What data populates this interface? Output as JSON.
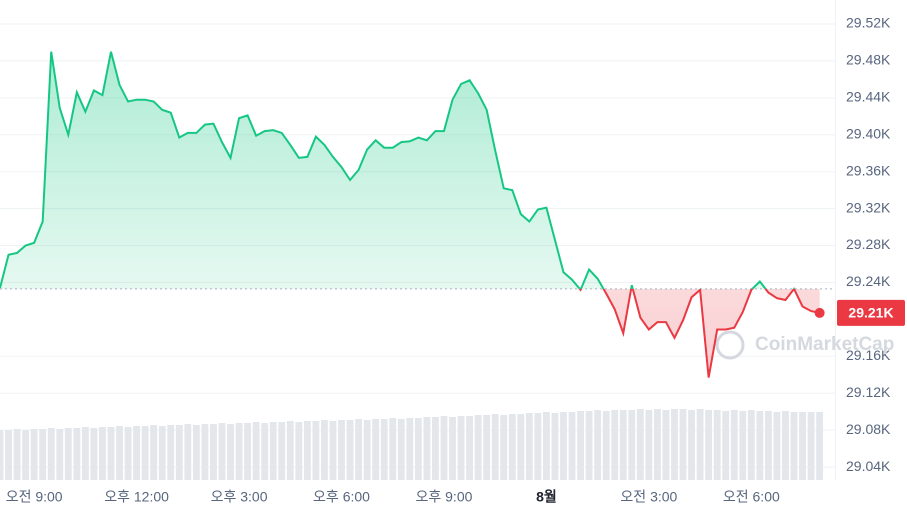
{
  "chart_data": {
    "type": "line",
    "x": [
      8,
      8.25,
      8.5,
      8.75,
      9,
      9.25,
      9.5,
      9.75,
      10,
      10.25,
      10.5,
      10.75,
      11,
      11.25,
      11.5,
      11.75,
      12,
      12.25,
      12.5,
      12.75,
      13,
      13.25,
      13.5,
      13.75,
      14,
      14.25,
      14.5,
      14.75,
      15,
      15.25,
      15.5,
      15.75,
      16,
      16.25,
      16.5,
      16.75,
      17,
      17.25,
      17.5,
      17.75,
      18,
      18.25,
      18.5,
      18.75,
      19,
      19.25,
      19.5,
      19.75,
      20,
      20.25,
      20.5,
      20.75,
      21,
      21.25,
      21.5,
      21.75,
      22,
      22.25,
      22.5,
      22.75,
      23,
      23.25,
      23.5,
      23.75,
      24,
      24.25,
      24.5,
      24.75,
      25,
      25.25,
      25.5,
      25.75,
      26,
      26.25,
      26.5,
      26.75,
      27,
      27.25,
      27.5,
      27.75,
      28,
      28.25,
      28.5,
      28.75,
      29,
      29.25,
      29.5,
      29.75,
      30,
      30.25,
      30.5,
      30.75,
      31,
      31.25,
      31.5,
      31.75,
      32
    ],
    "values": [
      29234,
      29270,
      29272,
      29280,
      29283,
      29306,
      29490,
      29429,
      29400,
      29446,
      29425,
      29448,
      29443,
      29490,
      29454,
      29436,
      29438,
      29438,
      29436,
      29427,
      29424,
      29397,
      29402,
      29402,
      29411,
      29412,
      29392,
      29375,
      29418,
      29421,
      29399,
      29404,
      29405,
      29402,
      29389,
      29375,
      29376,
      29398,
      29389,
      29376,
      29365,
      29351,
      29362,
      29384,
      29394,
      29386,
      29386,
      29392,
      29393,
      29397,
      29394,
      29404,
      29404,
      29438,
      29455,
      29459,
      29445,
      29427,
      29383,
      29342,
      29340,
      29314,
      29306,
      29319,
      29321,
      29286,
      29251,
      29243,
      29232,
      29254,
      29244,
      29228,
      29211,
      29185,
      29237,
      29202,
      29189,
      29197,
      29197,
      29180,
      29199,
      29224,
      29232,
      29137,
      29189,
      29189,
      29191,
      29208,
      29232,
      29241,
      29229,
      29223,
      29221,
      29233,
      29214,
      29209,
      29207
    ],
    "baseline": 29233,
    "up_color": "#16c784",
    "down_color": "#ea3943",
    "current_price": {
      "value": 29207,
      "label": "29.21K"
    },
    "volume": {
      "values": [
        50,
        50,
        51,
        50,
        51,
        51,
        52,
        51,
        52,
        52,
        53,
        52,
        53,
        53,
        54,
        53,
        54,
        54,
        55,
        54,
        55,
        55,
        56,
        55,
        56,
        56,
        57,
        56,
        57,
        57,
        58,
        57,
        58,
        58,
        59,
        58,
        59,
        59,
        60,
        59,
        60,
        60,
        61,
        60,
        61,
        61,
        62,
        61,
        62,
        62,
        63,
        63,
        64,
        63,
        64,
        64,
        65,
        65,
        66,
        65,
        66,
        66,
        67,
        67,
        68,
        67,
        68,
        68,
        69,
        69,
        70,
        69,
        70,
        70,
        70,
        71,
        70,
        71,
        70,
        71,
        71,
        70,
        71,
        70,
        70,
        69,
        70,
        69,
        70,
        69,
        69,
        68,
        69,
        68,
        68,
        68,
        68
      ],
      "ylim": [
        0,
        100
      ],
      "color": "#e3e6ea"
    },
    "xlim": [
      8,
      32.45
    ],
    "xticks": [
      {
        "value": 9,
        "label": "오전 9:00"
      },
      {
        "value": 12,
        "label": "오후 12:00"
      },
      {
        "value": 15,
        "label": "오후 3:00"
      },
      {
        "value": 18,
        "label": "오후 6:00"
      },
      {
        "value": 21,
        "label": "오후 9:00"
      },
      {
        "value": 24,
        "label": "8월"
      },
      {
        "value": 27,
        "label": "오전 3:00"
      },
      {
        "value": 30,
        "label": "오전 6:00"
      }
    ],
    "ylim": [
      29026,
      29546
    ],
    "yticks": [
      {
        "value": 29040,
        "label": "29.04K"
      },
      {
        "value": 29080,
        "label": "29.08K"
      },
      {
        "value": 29120,
        "label": "29.12K"
      },
      {
        "value": 29160,
        "label": "29.16K"
      },
      {
        "value": 29240,
        "label": "29.24K"
      },
      {
        "value": 29280,
        "label": "29.28K"
      },
      {
        "value": 29320,
        "label": "29.32K"
      },
      {
        "value": 29360,
        "label": "29.36K"
      },
      {
        "value": 29400,
        "label": "29.40K"
      },
      {
        "value": 29440,
        "label": "29.44K"
      },
      {
        "value": 29480,
        "label": "29.48K"
      },
      {
        "value": 29520,
        "label": "29.52K"
      }
    ],
    "grid": true,
    "watermark": "CoinMarketCap"
  }
}
